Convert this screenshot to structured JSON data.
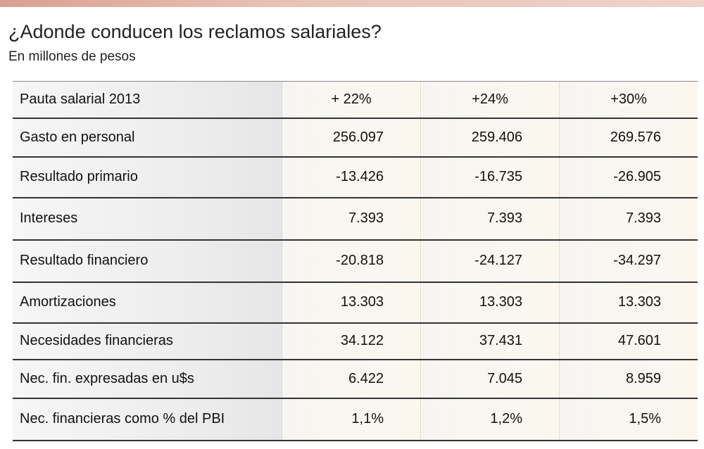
{
  "header": {
    "title": "¿Adonde conducen los reclamos salariales?",
    "subtitle": "En millones de pesos"
  },
  "table": {
    "rows": [
      [
        "Pauta salarial 2013",
        "+ 22%",
        "+24%",
        "+30%"
      ],
      [
        "Gasto en personal",
        "256.097",
        "259.406",
        "269.576"
      ],
      [
        "Resultado primario",
        "-13.426",
        "-16.735",
        "-26.905"
      ],
      [
        "Intereses",
        "7.393",
        "7.393",
        "7.393"
      ],
      [
        "Resultado financiero",
        "-20.818",
        "-24.127",
        "-34.297"
      ],
      [
        "Amortizaciones",
        "13.303",
        "13.303",
        "13.303"
      ],
      [
        "Necesidades financieras",
        "34.122",
        "37.431",
        "47.601"
      ],
      [
        "Nec. fin. expresadas en u$s",
        "6.422",
        "7.045",
        "8.959"
      ],
      [
        "Nec. financieras como % del PBI",
        "1,1%",
        "1,2%",
        "1,5%"
      ]
    ]
  }
}
